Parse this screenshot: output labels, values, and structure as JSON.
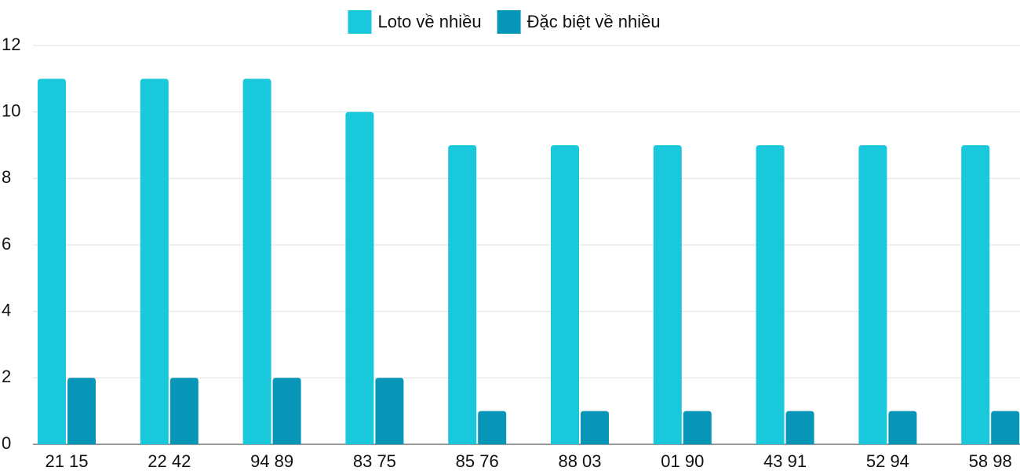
{
  "chart_data": {
    "type": "bar",
    "categories": [
      "21 15",
      "22 42",
      "94 89",
      "83 75",
      "85 76",
      "88 03",
      "01 90",
      "43 91",
      "52 94",
      "58 98"
    ],
    "series": [
      {
        "name": "Loto về nhiều",
        "color": "#1ac8db",
        "values": [
          11,
          11,
          11,
          10,
          9,
          9,
          9,
          9,
          9,
          9
        ]
      },
      {
        "name": "Đặc biệt về nhiều",
        "color": "#0795b8",
        "values": [
          2,
          2,
          2,
          2,
          1,
          1,
          1,
          1,
          1,
          1
        ]
      }
    ],
    "ylim": [
      0,
      12
    ],
    "yticks": [
      0,
      2,
      4,
      6,
      8,
      10,
      12
    ],
    "grid": true,
    "legend": "top"
  }
}
